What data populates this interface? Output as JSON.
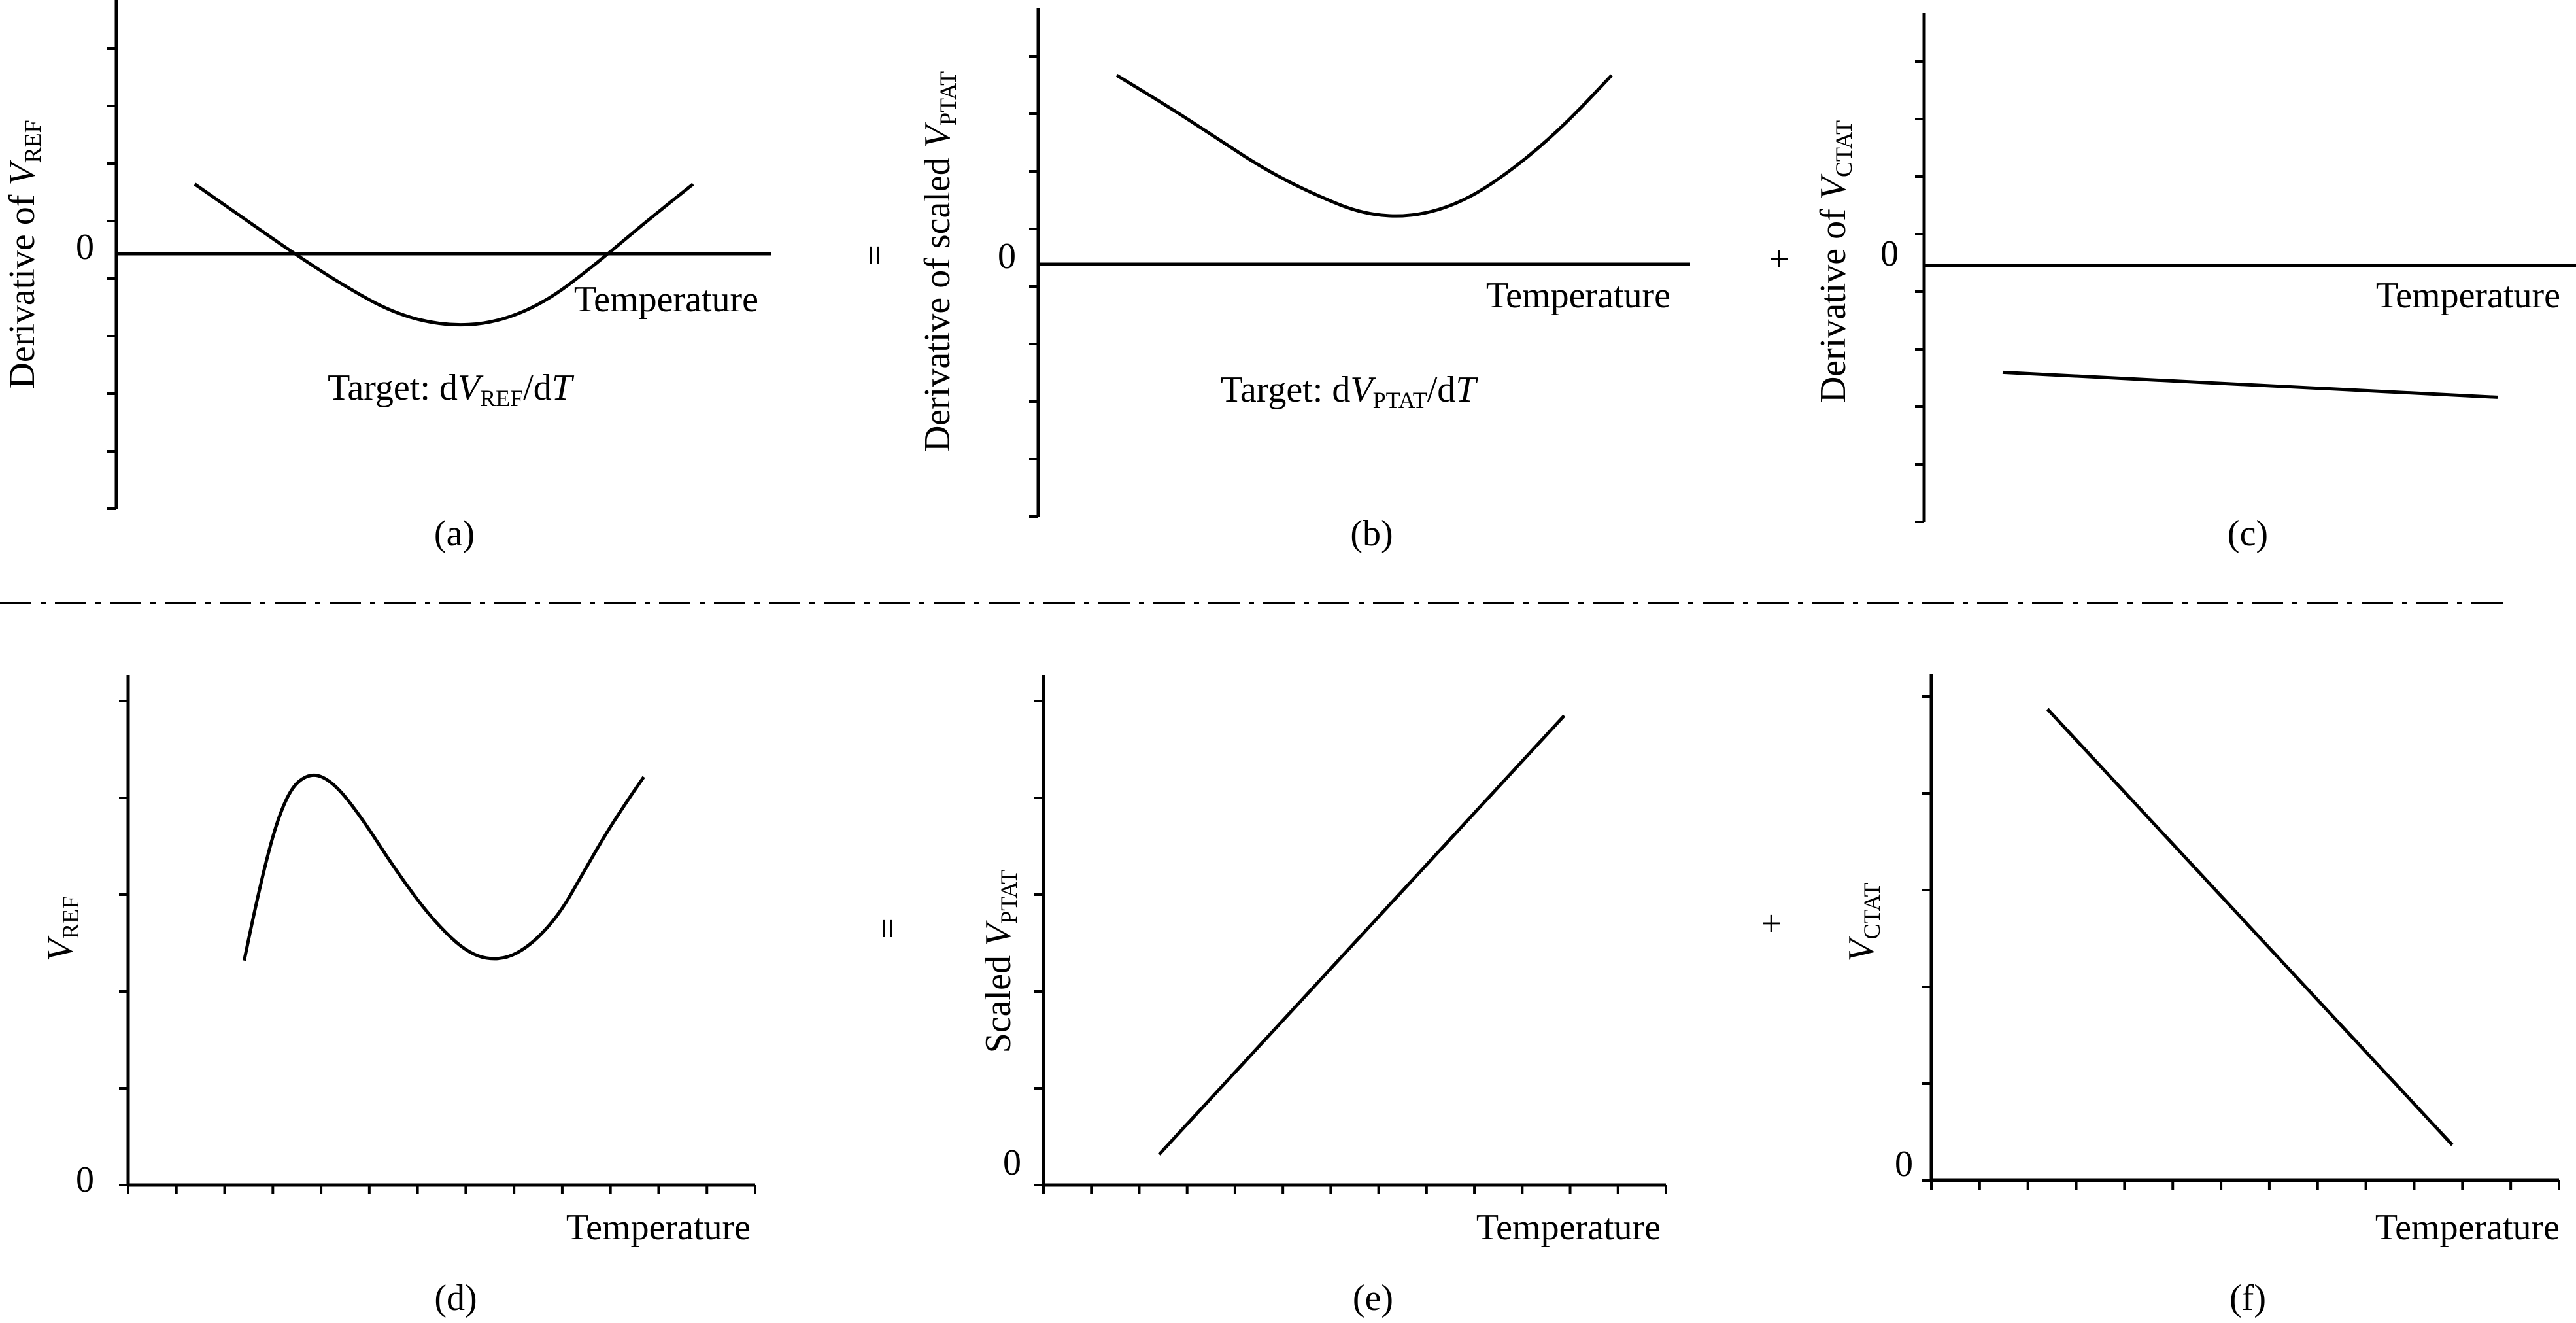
{
  "chart_data": [
    {
      "id": "a",
      "type": "line",
      "panel_label": "(a)",
      "ylabel_parts": [
        "Derivative of ",
        "V",
        "REF"
      ],
      "xlabel": "Temperature",
      "zero_label": "0",
      "annotation_parts": [
        "Target: d",
        "V",
        "REF",
        "/d",
        "T"
      ],
      "operator": "",
      "x": [
        0,
        0.1,
        0.2,
        0.3,
        0.4,
        0.5,
        0.6,
        0.7,
        0.8,
        0.9,
        1.0
      ],
      "series": [
        {
          "values": [
            0.28,
            0.14,
            0.0,
            -0.13,
            -0.24,
            -0.29,
            -0.28,
            -0.2,
            -0.05,
            0.12,
            0.28
          ]
        }
      ]
    },
    {
      "id": "b",
      "type": "line",
      "panel_label": "(b)",
      "ylabel_parts": [
        "Derivative of scaled ",
        "V",
        "PTAT"
      ],
      "xlabel": "Temperature",
      "zero_label": "0",
      "annotation_parts": [
        "Target: d",
        "V",
        "PTAT",
        "/d",
        "T"
      ],
      "operator": "=",
      "x": [
        0,
        0.1,
        0.2,
        0.3,
        0.4,
        0.5,
        0.6,
        0.7,
        0.8,
        0.9,
        1.0
      ],
      "series": [
        {
          "values": [
            0.76,
            0.64,
            0.51,
            0.38,
            0.28,
            0.2,
            0.19,
            0.25,
            0.38,
            0.55,
            0.76
          ]
        }
      ]
    },
    {
      "id": "c",
      "type": "line",
      "panel_label": "(c)",
      "ylabel_parts": [
        "Derivative of ",
        "V",
        "CTAT"
      ],
      "xlabel": "Temperature",
      "zero_label": "0",
      "annotation_parts": [],
      "operator": "+",
      "x": [
        0,
        1.0
      ],
      "series": [
        {
          "values": [
            -0.43,
            -0.53
          ]
        }
      ]
    },
    {
      "id": "d",
      "type": "line",
      "panel_label": "(d)",
      "ylabel_parts": [
        "",
        "V",
        "REF"
      ],
      "xlabel": "Temperature",
      "zero_label": "0",
      "operator": "",
      "x": [
        0.08,
        0.12,
        0.17,
        0.22,
        0.27,
        0.33,
        0.4,
        0.48,
        0.56,
        0.63,
        0.69,
        0.75,
        0.8,
        0.85,
        0.9,
        0.93
      ],
      "series": [
        {
          "values": [
            0.44,
            0.62,
            0.77,
            0.81,
            0.79,
            0.72,
            0.62,
            0.52,
            0.45,
            0.44,
            0.47,
            0.53,
            0.61,
            0.69,
            0.76,
            0.8
          ]
        }
      ]
    },
    {
      "id": "e",
      "type": "line",
      "panel_label": "(e)",
      "ylabel_parts": [
        "Scaled ",
        "V",
        "PTAT"
      ],
      "xlabel": "Temperature",
      "zero_label": "0",
      "operator": "=",
      "x": [
        0.08,
        0.95
      ],
      "series": [
        {
          "values": [
            0.06,
            0.92
          ]
        }
      ]
    },
    {
      "id": "f",
      "type": "line",
      "panel_label": "(f)",
      "ylabel_parts": [
        "",
        "V",
        "CTAT"
      ],
      "xlabel": "Temperature",
      "zero_label": "0",
      "operator": "+",
      "x": [
        0.08,
        0.94
      ],
      "series": [
        {
          "values": [
            0.93,
            0.07
          ]
        }
      ]
    }
  ]
}
